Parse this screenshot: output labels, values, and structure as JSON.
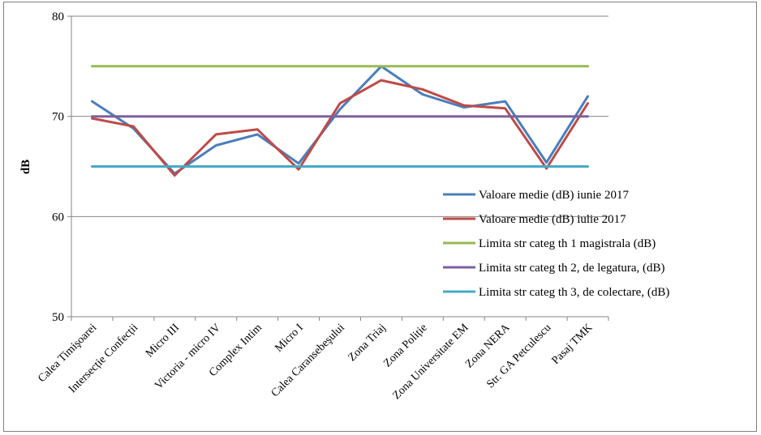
{
  "chart_data": {
    "type": "line",
    "title": "",
    "xlabel": "",
    "ylabel": "dB",
    "ylim": [
      50,
      80
    ],
    "yticks": [
      50,
      60,
      70,
      80
    ],
    "grid": "horizontal",
    "legend_position": "right",
    "categories": [
      "Calea Timişoarei",
      "Intersecție Confecții",
      "Micro III",
      "Victoria - micro IV",
      "Complex Intim",
      "Micro I",
      "Calea Caransebeşului",
      "Zona Triaj",
      "Zona Poliție",
      "Zona Universitate EM",
      "Zona NERA",
      "Str. GA Petculescu",
      "Pasaj TMK"
    ],
    "series": [
      {
        "name": "Valoare medie (dB) iunie 2017",
        "color": "#4a7ebb",
        "values": [
          71.5,
          68.8,
          64.3,
          67.1,
          68.2,
          65.3,
          70.7,
          75.0,
          72.2,
          70.9,
          71.5,
          65.4,
          72.0
        ]
      },
      {
        "name": "Valoare medie (dB) iulie 2017",
        "color": "#be4b48",
        "values": [
          69.8,
          69.0,
          64.1,
          68.2,
          68.7,
          64.7,
          71.3,
          73.6,
          72.7,
          71.1,
          70.8,
          64.8,
          71.3
        ]
      },
      {
        "name": "Limita str categ th 1 magistrala (dB)",
        "color": "#98b954",
        "values": [
          75,
          75,
          75,
          75,
          75,
          75,
          75,
          75,
          75,
          75,
          75,
          75,
          75
        ]
      },
      {
        "name": "Limita str categ th 2, de legatura, (dB)",
        "color": "#7d60a0",
        "values": [
          70,
          70,
          70,
          70,
          70,
          70,
          70,
          70,
          70,
          70,
          70,
          70,
          70
        ]
      },
      {
        "name": "Limita str categ th 3, de colectare, (dB)",
        "color": "#46aac5",
        "values": [
          65,
          65,
          65,
          65,
          65,
          65,
          65,
          65,
          65,
          65,
          65,
          65,
          65
        ]
      }
    ]
  }
}
